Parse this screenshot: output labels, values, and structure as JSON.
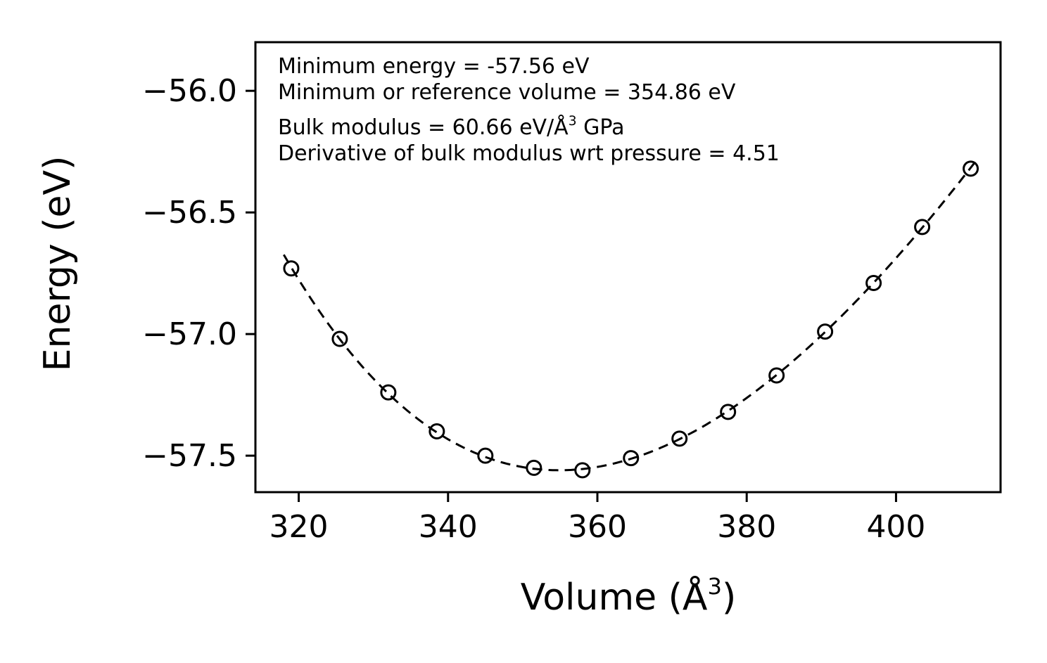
{
  "chart_data": {
    "type": "scatter",
    "title": "",
    "xlabel": {
      "prefix": "Volume (Å",
      "sup": "3",
      "suffix": ")"
    },
    "ylabel": "Energy (eV)",
    "xlim": [
      314.2,
      414.0
    ],
    "ylim": [
      -57.65,
      -55.8
    ],
    "xticks": [
      320,
      340,
      360,
      380,
      400
    ],
    "xtick_labels": [
      "320",
      "340",
      "360",
      "380",
      "400"
    ],
    "yticks": [
      -56.0,
      -56.5,
      -57.0,
      -57.5
    ],
    "ytick_labels": [
      "−56.0",
      "−56.5",
      "−57.0",
      "−57.5"
    ],
    "grid": false,
    "legend": "none",
    "colors": {
      "stroke": "#000000",
      "background": "#ffffff"
    },
    "annotations": {
      "line1": "Minimum energy = -57.56 eV",
      "line2": "Minimum or reference volume = 354.86 eV",
      "line3_prefix": "Bulk modulus = 60.66 eV/Å",
      "line3_sup": "3",
      "line3_suffix": " GPa",
      "line4": "Derivative of bulk modulus wrt pressure = 4.51"
    },
    "series": [
      {
        "name": "calculated-points",
        "type": "scatter",
        "marker": "open-circle",
        "x": [
          319.0,
          325.5,
          332.0,
          338.5,
          345.0,
          351.5,
          358.0,
          364.5,
          371.0,
          377.5,
          384.0,
          390.5,
          397.0,
          403.5,
          410.0
        ],
        "y": [
          -56.73,
          -57.02,
          -57.24,
          -57.4,
          -57.5,
          -57.55,
          -57.56,
          -57.51,
          -57.43,
          -57.32,
          -57.17,
          -56.99,
          -56.79,
          -56.56,
          -56.32
        ]
      },
      {
        "name": "birch-murnaghan-fit",
        "type": "line",
        "style": "dashed",
        "fit_params": {
          "minimum_energy_eV": -57.56,
          "reference_volume_A3": 354.86,
          "bulk_modulus_GPa": 60.66,
          "bulk_modulus_pressure_derivative": 4.51
        }
      }
    ]
  }
}
